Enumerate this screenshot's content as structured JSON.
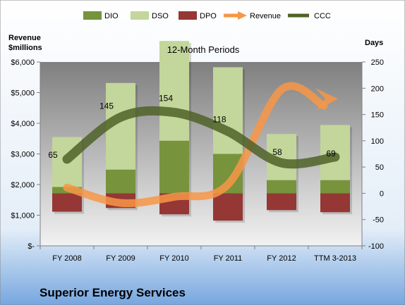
{
  "chart_data": {
    "type": "bar",
    "subtitle": "12-Month Periods",
    "footer_title": "Superior Energy Services",
    "left_axis_label_line1": "Revenue",
    "left_axis_label_line2": "$millions",
    "right_axis_label": "Days",
    "categories": [
      "FY 2008",
      "FY 2009",
      "FY 2010",
      "FY 2011",
      "FY 2012",
      "TTM 3-2013"
    ],
    "left_ticks": [
      "$-",
      "$1,000",
      "$2,000",
      "$3,000",
      "$4,000",
      "$5,000",
      "$6,000"
    ],
    "right_ticks": [
      "-100",
      "-50",
      "0",
      "50",
      "100",
      "150",
      "200",
      "250"
    ],
    "ylim_right": [
      -100,
      250
    ],
    "ylim_left": [
      0,
      6000
    ],
    "series": [
      {
        "name": "DIO",
        "axis": "right",
        "values": [
          12,
          45,
          100,
          75,
          25,
          25
        ],
        "color": "#77933c"
      },
      {
        "name": "DSO",
        "axis": "right",
        "values": [
          95,
          165,
          190,
          165,
          88,
          105
        ],
        "color": "#c3d69b"
      },
      {
        "name": "DPO",
        "axis": "right",
        "values": [
          -35,
          -28,
          -40,
          -52,
          -32,
          -36
        ],
        "color": "#953735"
      },
      {
        "name": "Revenue",
        "axis": "left",
        "values": [
          1900,
          1400,
          1600,
          2000,
          5100,
          4800
        ],
        "color": "#f79646"
      },
      {
        "name": "CCC",
        "axis": "right",
        "values": [
          65,
          145,
          154,
          118,
          58,
          69
        ],
        "color": "#4f6228"
      }
    ],
    "ccc_labels": [
      "65",
      "145",
      "154",
      "118",
      "58",
      "69"
    ],
    "legend_position": "top"
  }
}
